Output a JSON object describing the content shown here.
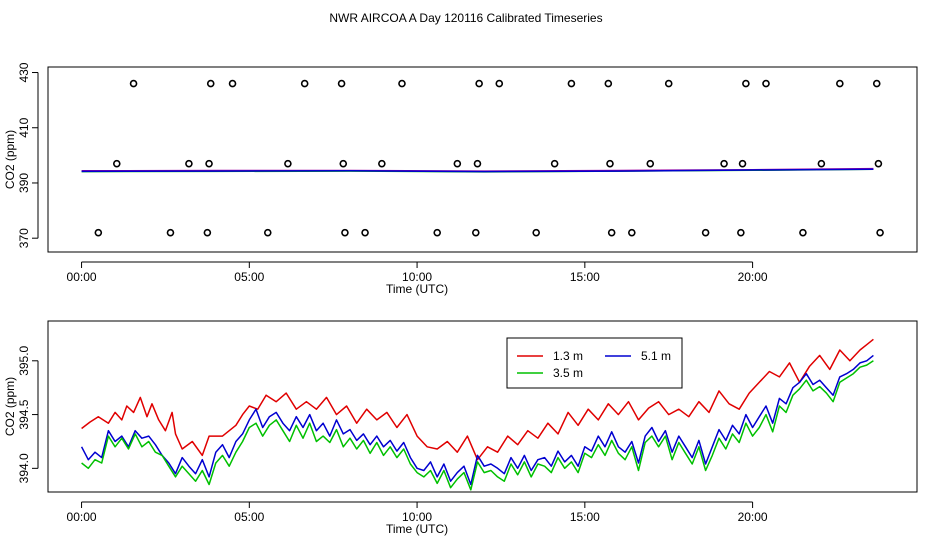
{
  "page_title": "NWR AIRCOA A  Day 120116  Calibrated Timeseries",
  "colors": {
    "red": "#e00000",
    "green": "#00c000",
    "blue": "#0000d0",
    "purple": "#a000a0",
    "black": "#000000"
  },
  "chart_data": [
    {
      "type": "scatter",
      "title": "",
      "xlabel": "Time (UTC)",
      "ylabel": "CO2 (ppm)",
      "xlim": [
        -1.0,
        24.9
      ],
      "ylim": [
        365,
        432
      ],
      "x_ticks": [
        0,
        5,
        10,
        15,
        20
      ],
      "x_tick_labels": [
        "00:00",
        "05:00",
        "10:00",
        "15:00",
        "20:00"
      ],
      "y_ticks": [
        370,
        390,
        410,
        430
      ],
      "y_tick_labels": [
        "370",
        "390",
        "410",
        "430"
      ],
      "reference_points": [
        {
          "x": 0.5,
          "y": 372
        },
        {
          "x": 1.05,
          "y": 397
        },
        {
          "x": 1.55,
          "y": 426
        },
        {
          "x": 2.65,
          "y": 372
        },
        {
          "x": 3.2,
          "y": 397
        },
        {
          "x": 3.75,
          "y": 372
        },
        {
          "x": 3.8,
          "y": 397
        },
        {
          "x": 3.85,
          "y": 426
        },
        {
          "x": 4.5,
          "y": 426
        },
        {
          "x": 5.55,
          "y": 372
        },
        {
          "x": 6.15,
          "y": 397
        },
        {
          "x": 6.65,
          "y": 426
        },
        {
          "x": 7.75,
          "y": 426
        },
        {
          "x": 7.8,
          "y": 397
        },
        {
          "x": 7.85,
          "y": 372
        },
        {
          "x": 8.45,
          "y": 372
        },
        {
          "x": 8.95,
          "y": 397
        },
        {
          "x": 9.55,
          "y": 426
        },
        {
          "x": 10.6,
          "y": 372
        },
        {
          "x": 11.2,
          "y": 397
        },
        {
          "x": 11.75,
          "y": 372
        },
        {
          "x": 11.8,
          "y": 397
        },
        {
          "x": 11.85,
          "y": 426
        },
        {
          "x": 12.45,
          "y": 426
        },
        {
          "x": 13.55,
          "y": 372
        },
        {
          "x": 14.1,
          "y": 397
        },
        {
          "x": 14.6,
          "y": 426
        },
        {
          "x": 15.7,
          "y": 426
        },
        {
          "x": 15.75,
          "y": 397
        },
        {
          "x": 15.8,
          "y": 372
        },
        {
          "x": 16.4,
          "y": 372
        },
        {
          "x": 16.95,
          "y": 397
        },
        {
          "x": 17.5,
          "y": 426
        },
        {
          "x": 18.6,
          "y": 372
        },
        {
          "x": 19.15,
          "y": 397
        },
        {
          "x": 19.65,
          "y": 372
        },
        {
          "x": 19.7,
          "y": 397
        },
        {
          "x": 19.8,
          "y": 426
        },
        {
          "x": 20.4,
          "y": 426
        },
        {
          "x": 21.5,
          "y": 372
        },
        {
          "x": 22.05,
          "y": 397
        },
        {
          "x": 22.6,
          "y": 426
        },
        {
          "x": 23.7,
          "y": 426
        },
        {
          "x": 23.75,
          "y": 397
        },
        {
          "x": 23.8,
          "y": 372
        }
      ],
      "series": [
        {
          "name": "3.5 m",
          "color": "#00c000",
          "x": [
            0,
            4,
            8,
            12,
            16,
            20,
            23.6
          ],
          "y": [
            394.1,
            394.2,
            394.3,
            394.0,
            394.3,
            394.6,
            395.0
          ]
        },
        {
          "name": "1.3 m",
          "color": "#a000a0",
          "x": [
            0,
            4,
            8,
            12,
            16,
            20,
            23.6
          ],
          "y": [
            394.4,
            394.5,
            394.5,
            394.3,
            394.5,
            394.8,
            395.2
          ]
        },
        {
          "name": "5.1 m",
          "color": "#0000d0",
          "x": [
            0,
            4,
            8,
            12,
            16,
            20,
            23.6
          ],
          "y": [
            394.2,
            394.3,
            394.4,
            394.1,
            394.3,
            394.7,
            395.0
          ]
        }
      ]
    },
    {
      "type": "line",
      "title": "",
      "xlabel": "Time (UTC)",
      "ylabel": "CO2 (ppm)",
      "xlim": [
        -1.0,
        24.9
      ],
      "ylim": [
        393.78,
        395.37
      ],
      "x_ticks": [
        0,
        5,
        10,
        15,
        20
      ],
      "x_tick_labels": [
        "00:00",
        "05:00",
        "10:00",
        "15:00",
        "20:00"
      ],
      "y_ticks": [
        394.0,
        394.5,
        395.0
      ],
      "y_tick_labels": [
        "394.0",
        "394.5",
        "395.0"
      ],
      "legend": {
        "position": "top-center",
        "entries": [
          {
            "label": "1.3 m",
            "color": "#e00000"
          },
          {
            "label": "5.1 m",
            "color": "#0000d0"
          },
          {
            "label": "3.5 m",
            "color": "#00c000"
          }
        ]
      },
      "series": [
        {
          "name": "1.3 m",
          "color": "#e00000",
          "x": [
            0,
            0.25,
            0.5,
            0.8,
            1.0,
            1.2,
            1.35,
            1.55,
            1.75,
            1.95,
            2.1,
            2.3,
            2.5,
            2.7,
            2.8,
            3.0,
            3.3,
            3.6,
            3.8,
            4.0,
            4.2,
            4.4,
            4.6,
            4.8,
            5.0,
            5.25,
            5.5,
            5.8,
            6.1,
            6.4,
            6.7,
            7.0,
            7.3,
            7.6,
            7.9,
            8.2,
            8.5,
            8.8,
            9.1,
            9.4,
            9.7,
            10.0,
            10.3,
            10.6,
            10.9,
            11.2,
            11.5,
            11.8,
            12.1,
            12.4,
            12.7,
            13.0,
            13.3,
            13.6,
            13.9,
            14.2,
            14.5,
            14.8,
            15.1,
            15.4,
            15.7,
            16.0,
            16.3,
            16.6,
            16.9,
            17.2,
            17.5,
            17.8,
            18.1,
            18.4,
            18.7,
            19.0,
            19.3,
            19.6,
            19.9,
            20.2,
            20.5,
            20.8,
            21.1,
            21.4,
            21.7,
            22.0,
            22.3,
            22.6,
            22.9,
            23.2,
            23.4,
            23.6
          ],
          "y": [
            394.37,
            394.43,
            394.48,
            394.42,
            394.52,
            394.45,
            394.58,
            394.52,
            394.66,
            394.48,
            394.6,
            394.45,
            394.35,
            394.52,
            394.32,
            394.18,
            394.25,
            394.12,
            394.3,
            394.3,
            394.3,
            394.35,
            394.4,
            394.5,
            394.58,
            394.55,
            394.68,
            394.62,
            394.7,
            394.55,
            394.62,
            394.55,
            394.66,
            394.5,
            394.58,
            394.42,
            394.55,
            394.45,
            394.52,
            394.38,
            394.5,
            394.3,
            394.2,
            394.18,
            394.25,
            394.15,
            394.3,
            394.08,
            394.2,
            394.15,
            394.3,
            394.22,
            394.35,
            394.28,
            394.42,
            394.32,
            394.52,
            394.4,
            394.55,
            394.45,
            394.6,
            394.5,
            394.62,
            394.45,
            394.56,
            394.62,
            394.5,
            394.55,
            394.48,
            394.62,
            394.52,
            394.72,
            394.6,
            394.55,
            394.7,
            394.8,
            394.9,
            394.85,
            394.98,
            394.8,
            394.95,
            395.05,
            394.92,
            395.1,
            395.0,
            395.1,
            395.15,
            395.2
          ]
        },
        {
          "name": "5.1 m",
          "color": "#0000d0",
          "x": [
            0,
            0.2,
            0.4,
            0.6,
            0.8,
            1.0,
            1.2,
            1.4,
            1.6,
            1.8,
            2.0,
            2.2,
            2.4,
            2.6,
            2.8,
            3.0,
            3.2,
            3.4,
            3.6,
            3.8,
            4.0,
            4.2,
            4.4,
            4.6,
            4.8,
            5.0,
            5.2,
            5.4,
            5.6,
            5.8,
            6.0,
            6.2,
            6.4,
            6.6,
            6.8,
            7.0,
            7.2,
            7.4,
            7.6,
            7.8,
            8.0,
            8.2,
            8.4,
            8.6,
            8.8,
            9.0,
            9.2,
            9.4,
            9.6,
            9.8,
            10.0,
            10.2,
            10.4,
            10.6,
            10.8,
            11.0,
            11.2,
            11.4,
            11.6,
            11.8,
            12.0,
            12.2,
            12.4,
            12.6,
            12.8,
            13.0,
            13.2,
            13.4,
            13.6,
            13.8,
            14.0,
            14.2,
            14.4,
            14.6,
            14.8,
            15.0,
            15.2,
            15.4,
            15.6,
            15.8,
            16.0,
            16.2,
            16.4,
            16.6,
            16.8,
            17.0,
            17.2,
            17.4,
            17.6,
            17.8,
            18.0,
            18.2,
            18.4,
            18.6,
            18.8,
            19.0,
            19.2,
            19.4,
            19.6,
            19.8,
            20.0,
            20.2,
            20.4,
            20.6,
            20.8,
            21.0,
            21.2,
            21.4,
            21.6,
            21.8,
            22.0,
            22.2,
            22.4,
            22.6,
            22.8,
            23.0,
            23.2,
            23.4,
            23.6
          ],
          "y": [
            394.2,
            394.08,
            394.15,
            394.1,
            394.35,
            394.25,
            394.3,
            394.2,
            394.35,
            394.28,
            394.3,
            394.22,
            394.12,
            394.05,
            393.95,
            394.1,
            394.02,
            393.95,
            394.08,
            393.92,
            394.15,
            394.22,
            394.1,
            394.25,
            394.32,
            394.45,
            394.55,
            394.38,
            394.48,
            394.52,
            394.42,
            394.35,
            394.48,
            394.38,
            394.5,
            394.35,
            394.42,
            394.3,
            394.45,
            394.32,
            394.36,
            394.26,
            394.32,
            394.22,
            394.3,
            394.2,
            394.26,
            394.16,
            394.24,
            394.1,
            394.0,
            393.98,
            394.06,
            393.92,
            394.04,
            393.88,
            393.96,
            394.02,
            393.85,
            394.12,
            394.02,
            394.04,
            394.0,
            393.95,
            394.1,
            394.0,
            394.12,
            393.98,
            394.08,
            394.1,
            394.02,
            394.16,
            394.06,
            394.12,
            394.02,
            394.2,
            394.16,
            394.3,
            394.2,
            394.34,
            394.2,
            394.15,
            394.25,
            394.05,
            394.3,
            394.38,
            394.25,
            394.35,
            394.15,
            394.3,
            394.2,
            394.1,
            394.26,
            394.04,
            394.2,
            394.36,
            394.26,
            394.4,
            394.32,
            394.5,
            394.38,
            394.48,
            394.58,
            394.42,
            394.65,
            394.6,
            394.75,
            394.8,
            394.88,
            394.78,
            394.82,
            394.75,
            394.68,
            394.85,
            394.88,
            394.92,
            394.98,
            395.0,
            395.05
          ]
        },
        {
          "name": "3.5 m",
          "color": "#00c000",
          "x": [
            0,
            0.2,
            0.4,
            0.6,
            0.8,
            1.0,
            1.2,
            1.4,
            1.6,
            1.8,
            2.0,
            2.2,
            2.4,
            2.6,
            2.8,
            3.0,
            3.2,
            3.4,
            3.6,
            3.8,
            4.0,
            4.2,
            4.4,
            4.6,
            4.8,
            5.0,
            5.2,
            5.4,
            5.6,
            5.8,
            6.0,
            6.2,
            6.4,
            6.6,
            6.8,
            7.0,
            7.2,
            7.4,
            7.6,
            7.8,
            8.0,
            8.2,
            8.4,
            8.6,
            8.8,
            9.0,
            9.2,
            9.4,
            9.6,
            9.8,
            10.0,
            10.2,
            10.4,
            10.6,
            10.8,
            11.0,
            11.2,
            11.4,
            11.6,
            11.8,
            12.0,
            12.2,
            12.4,
            12.6,
            12.8,
            13.0,
            13.2,
            13.4,
            13.6,
            13.8,
            14.0,
            14.2,
            14.4,
            14.6,
            14.8,
            15.0,
            15.2,
            15.4,
            15.6,
            15.8,
            16.0,
            16.2,
            16.4,
            16.6,
            16.8,
            17.0,
            17.2,
            17.4,
            17.6,
            17.8,
            18.0,
            18.2,
            18.4,
            18.6,
            18.8,
            19.0,
            19.2,
            19.4,
            19.6,
            19.8,
            20.0,
            20.2,
            20.4,
            20.6,
            20.8,
            21.0,
            21.2,
            21.4,
            21.6,
            21.8,
            22.0,
            22.2,
            22.4,
            22.6,
            22.8,
            23.0,
            23.2,
            23.4,
            23.6
          ],
          "y": [
            394.05,
            394.0,
            394.08,
            394.05,
            394.3,
            394.2,
            394.28,
            394.18,
            394.32,
            394.2,
            394.25,
            394.15,
            394.12,
            394.02,
            393.92,
            394.02,
            393.95,
            393.88,
            393.98,
            393.85,
            394.05,
            394.12,
            394.02,
            394.15,
            394.25,
            394.38,
            394.42,
            394.3,
            394.4,
            394.45,
            394.35,
            394.25,
            394.4,
            394.28,
            394.42,
            394.25,
            394.3,
            394.24,
            394.36,
            394.2,
            394.28,
            394.18,
            394.26,
            394.14,
            394.24,
            394.12,
            394.2,
            394.1,
            394.18,
            394.04,
            393.96,
            393.92,
            393.98,
            393.86,
            393.98,
            393.82,
            393.9,
            393.96,
            393.8,
            394.06,
            393.96,
            393.98,
            393.92,
            393.88,
            394.04,
            393.94,
            394.06,
            393.92,
            394.04,
            394.02,
            393.96,
            394.1,
            394.0,
            394.06,
            393.96,
            394.14,
            394.1,
            394.22,
            394.12,
            394.26,
            394.14,
            394.08,
            394.2,
            393.98,
            394.24,
            394.3,
            394.2,
            394.3,
            394.08,
            394.24,
            394.14,
            394.04,
            394.2,
            393.98,
            394.12,
            394.28,
            394.18,
            394.32,
            394.24,
            394.42,
            394.3,
            394.38,
            394.5,
            394.34,
            394.58,
            394.52,
            394.68,
            394.74,
            394.82,
            394.72,
            394.76,
            394.7,
            394.62,
            394.8,
            394.84,
            394.88,
            394.94,
            394.96,
            395.0
          ]
        }
      ]
    }
  ]
}
